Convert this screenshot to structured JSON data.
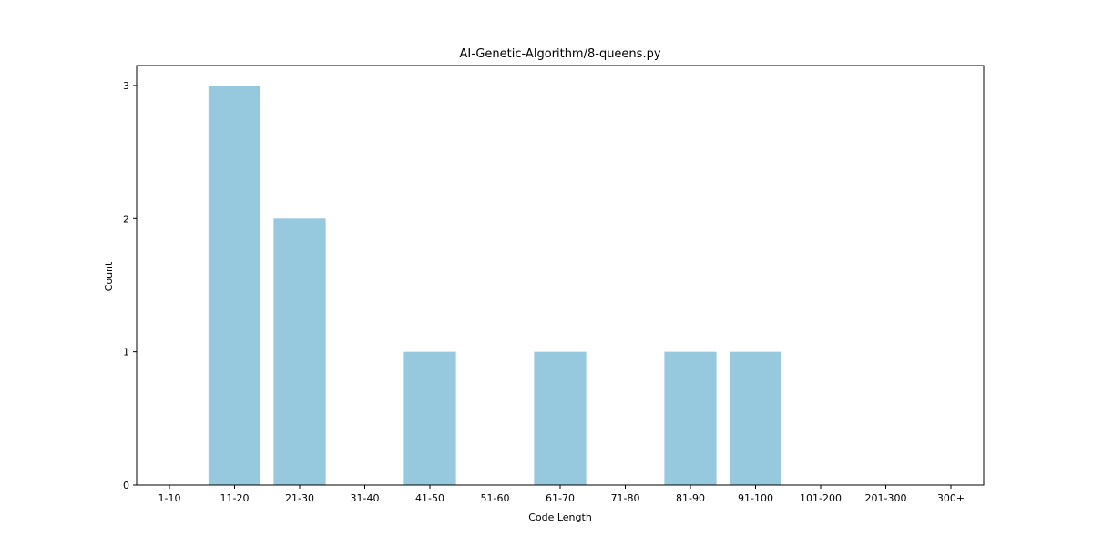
{
  "chart_data": {
    "type": "bar",
    "title": "AI-Genetic-Algorithm/8-queens.py",
    "xlabel": "Code Length",
    "ylabel": "Count",
    "categories": [
      "1-10",
      "11-20",
      "21-30",
      "31-40",
      "41-50",
      "51-60",
      "61-70",
      "71-80",
      "81-90",
      "91-100",
      "101-200",
      "201-300",
      "300+"
    ],
    "values": [
      0,
      3,
      2,
      0,
      1,
      0,
      1,
      0,
      1,
      1,
      0,
      0,
      0
    ],
    "ylim": [
      0,
      3.15
    ],
    "yticks": [
      "0",
      "1",
      "2",
      "3"
    ],
    "bar_color": "#96c9dd",
    "grid": false
  }
}
